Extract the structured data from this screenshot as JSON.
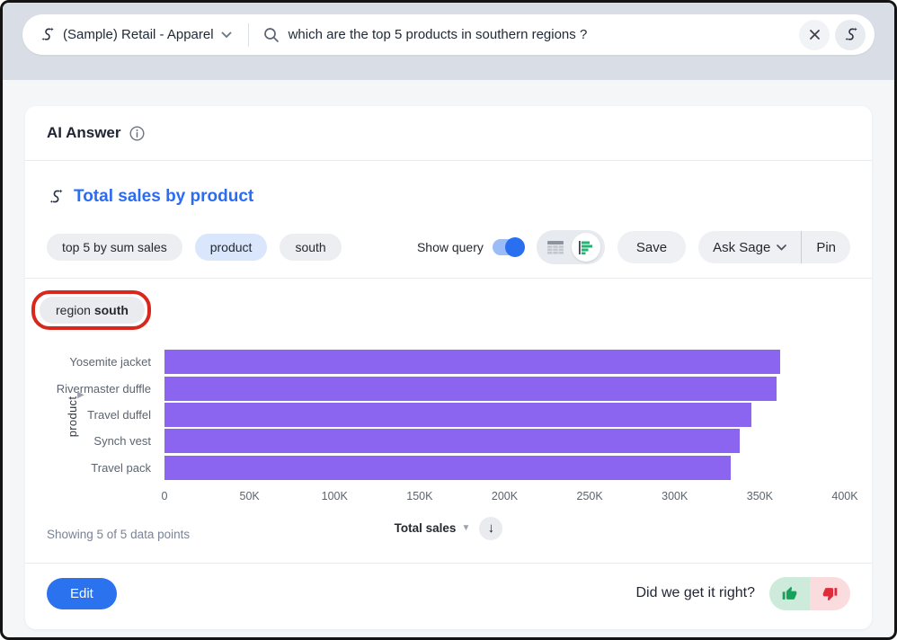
{
  "topbar": {
    "datasource_label": "(Sample) Retail - Apparel",
    "search_query": "which are the top 5 products in southern regions ?"
  },
  "header": {
    "title": "AI Answer"
  },
  "answer": {
    "title": "Total sales by product",
    "tokens": {
      "token1": "top 5 by sum sales",
      "token2": "product",
      "token3": "south"
    },
    "show_query_label": "Show query",
    "show_query_on": true,
    "save_label": "Save",
    "ask_sage_label": "Ask Sage",
    "pin_label": "Pin",
    "filter_chip": {
      "attribute": "region",
      "value": "south"
    }
  },
  "chart_data": {
    "type": "bar",
    "orientation": "horizontal",
    "title": "Total sales by product",
    "categories": [
      "Yosemite jacket",
      "Rivermaster duffle",
      "Travel duffel",
      "Synch vest",
      "Travel pack"
    ],
    "values": [
      362000,
      360000,
      345000,
      338000,
      333000
    ],
    "xlabel": "Total sales",
    "ylabel": "product",
    "xlim": [
      0,
      400000
    ],
    "x_ticks": [
      "0",
      "50K",
      "100K",
      "150K",
      "200K",
      "250K",
      "300K",
      "350K",
      "400K"
    ],
    "grid": false,
    "bar_color": "#8b64ef",
    "sort": "descending"
  },
  "chart_footer": {
    "axis_title": "Total sales",
    "sort_icon": "↓",
    "showing_text": "Showing 5 of 5 data points"
  },
  "footer": {
    "edit_label": "Edit",
    "feedback_question": "Did we get it right?"
  },
  "colors": {
    "accent_blue": "#2b6cf0",
    "bar_purple": "#8b64ef",
    "annotation_red": "#d8271d",
    "thumb_up_green": "#18a15c",
    "thumb_down_red": "#e02b38",
    "chart_toggle_green": "#21b573"
  },
  "icons": {
    "sage": "sage-sparkle",
    "search": "magnifier",
    "clear": "x",
    "info": "info-circle",
    "table_view": "table-grid",
    "chart_view": "bar-chart",
    "sort": "arrow-down",
    "thumb_up": "thumbs-up",
    "thumb_down": "thumbs-down"
  }
}
